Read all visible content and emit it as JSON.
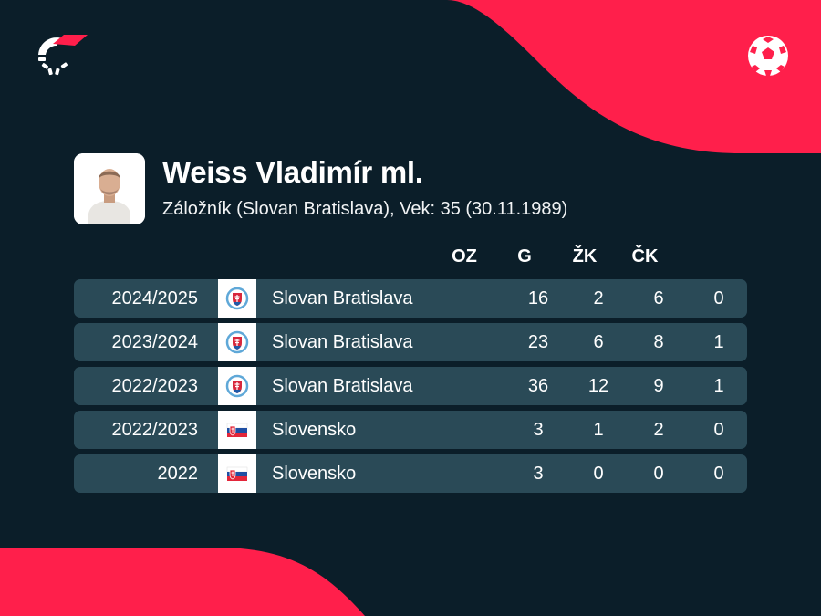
{
  "colors": {
    "background": "#0b1e29",
    "accent": "#ff1f4b",
    "row": "#2a4a57"
  },
  "brand": {
    "logo_icon": "flashscore-logo-icon",
    "sport_icon": "football-icon"
  },
  "player": {
    "name": "Weiss Vladimír ml.",
    "info": "Záložník (Slovan Bratislava), Vek: 35 (30.11.1989)"
  },
  "table": {
    "headers": [
      "OZ",
      "G",
      "ŽK",
      "ČK"
    ],
    "rows": [
      {
        "season": "2024/2025",
        "team": "Slovan Bratislava",
        "icon": "slovan-bratislava-crest-icon",
        "stats": [
          "16",
          "2",
          "6",
          "0"
        ]
      },
      {
        "season": "2023/2024",
        "team": "Slovan Bratislava",
        "icon": "slovan-bratislava-crest-icon",
        "stats": [
          "23",
          "6",
          "8",
          "1"
        ]
      },
      {
        "season": "2022/2023",
        "team": "Slovan Bratislava",
        "icon": "slovan-bratislava-crest-icon",
        "stats": [
          "36",
          "12",
          "9",
          "1"
        ]
      },
      {
        "season": "2022/2023",
        "team": "Slovensko",
        "icon": "slovakia-flag-icon",
        "stats": [
          "3",
          "1",
          "2",
          "0"
        ]
      },
      {
        "season": "2022",
        "team": "Slovensko",
        "icon": "slovakia-flag-icon",
        "stats": [
          "3",
          "0",
          "0",
          "0"
        ]
      }
    ]
  }
}
